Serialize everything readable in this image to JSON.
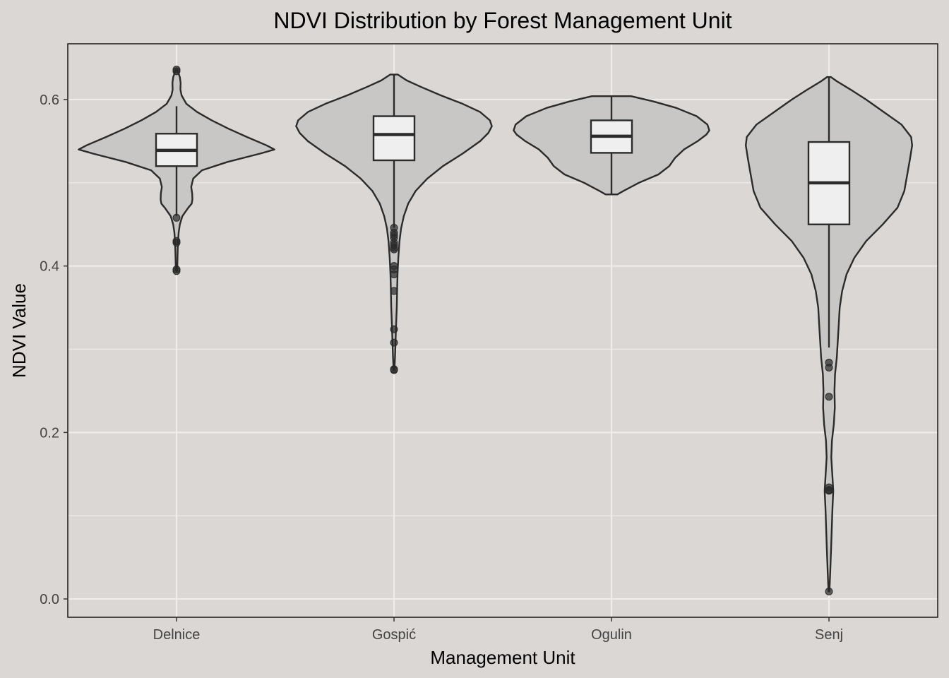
{
  "chart_data": {
    "type": "violin",
    "title": "NDVI Distribution by Forest Management Unit",
    "xlabel": "Management Unit",
    "ylabel": "NDVI Value",
    "ylim": [
      -0.022,
      0.667
    ],
    "yticks": [
      0.0,
      0.2,
      0.4,
      0.6
    ],
    "ytick_labels": [
      "0.0",
      "0.2",
      "0.4",
      "0.6"
    ],
    "categories": [
      "Delnice",
      "Gospić",
      "Ogulin",
      "Senj"
    ],
    "grid": true,
    "colors": {
      "panel": "#dad7d4",
      "violin_fill": "#c9c7c5",
      "box_fill": "#efefef",
      "stroke": "#2b2b2b",
      "grid": "#efedeb"
    },
    "groups": [
      {
        "name": "Delnice",
        "box": {
          "q1": 0.52,
          "median": 0.539,
          "q3": 0.559,
          "whisker_low": 0.46,
          "whisker_high": 0.592
        },
        "outliers": [
          0.636,
          0.634,
          0.458,
          0.43,
          0.428,
          0.396,
          0.394
        ],
        "density": [
          [
            0.394,
            0.004
          ],
          [
            0.4,
            0.008
          ],
          [
            0.41,
            0.01
          ],
          [
            0.42,
            0.012
          ],
          [
            0.43,
            0.016
          ],
          [
            0.44,
            0.022
          ],
          [
            0.45,
            0.034
          ],
          [
            0.46,
            0.06
          ],
          [
            0.47,
            0.12
          ],
          [
            0.475,
            0.155
          ],
          [
            0.48,
            0.162
          ],
          [
            0.487,
            0.16
          ],
          [
            0.495,
            0.15
          ],
          [
            0.505,
            0.17
          ],
          [
            0.515,
            0.26
          ],
          [
            0.525,
            0.52
          ],
          [
            0.535,
            0.85
          ],
          [
            0.54,
            1.0
          ],
          [
            0.545,
            0.92
          ],
          [
            0.555,
            0.72
          ],
          [
            0.565,
            0.53
          ],
          [
            0.575,
            0.36
          ],
          [
            0.585,
            0.21
          ],
          [
            0.595,
            0.1
          ],
          [
            0.605,
            0.052
          ],
          [
            0.612,
            0.04
          ],
          [
            0.62,
            0.042
          ],
          [
            0.627,
            0.034
          ],
          [
            0.633,
            0.016
          ],
          [
            0.636,
            0.004
          ]
        ]
      },
      {
        "name": "Gospić",
        "box": {
          "q1": 0.527,
          "median": 0.558,
          "q3": 0.58,
          "whisker_low": 0.446,
          "whisker_high": 0.63
        },
        "outliers": [
          0.446,
          0.44,
          0.437,
          0.434,
          0.428,
          0.425,
          0.422,
          0.42,
          0.4,
          0.396,
          0.39,
          0.37,
          0.324,
          0.308,
          0.276,
          0.275
        ],
        "density": [
          [
            0.275,
            0.004
          ],
          [
            0.29,
            0.01
          ],
          [
            0.31,
            0.016
          ],
          [
            0.33,
            0.022
          ],
          [
            0.35,
            0.028
          ],
          [
            0.37,
            0.032
          ],
          [
            0.39,
            0.036
          ],
          [
            0.41,
            0.044
          ],
          [
            0.43,
            0.056
          ],
          [
            0.445,
            0.072
          ],
          [
            0.46,
            0.1
          ],
          [
            0.475,
            0.145
          ],
          [
            0.49,
            0.22
          ],
          [
            0.505,
            0.34
          ],
          [
            0.52,
            0.5
          ],
          [
            0.535,
            0.7
          ],
          [
            0.55,
            0.88
          ],
          [
            0.56,
            0.965
          ],
          [
            0.568,
            1.0
          ],
          [
            0.575,
            0.98
          ],
          [
            0.585,
            0.88
          ],
          [
            0.595,
            0.7
          ],
          [
            0.605,
            0.48
          ],
          [
            0.615,
            0.28
          ],
          [
            0.623,
            0.13
          ],
          [
            0.63,
            0.04
          ]
        ]
      },
      {
        "name": "Ogulin",
        "box": {
          "q1": 0.536,
          "median": 0.556,
          "q3": 0.575,
          "whisker_low": 0.486,
          "whisker_high": 0.604
        },
        "outliers": [],
        "density": [
          [
            0.486,
            0.06
          ],
          [
            0.49,
            0.12
          ],
          [
            0.5,
            0.28
          ],
          [
            0.51,
            0.48
          ],
          [
            0.52,
            0.59
          ],
          [
            0.53,
            0.65
          ],
          [
            0.54,
            0.74
          ],
          [
            0.55,
            0.88
          ],
          [
            0.558,
            0.97
          ],
          [
            0.563,
            1.0
          ],
          [
            0.57,
            0.98
          ],
          [
            0.58,
            0.87
          ],
          [
            0.59,
            0.66
          ],
          [
            0.598,
            0.42
          ],
          [
            0.604,
            0.2
          ]
        ]
      },
      {
        "name": "Senj",
        "box": {
          "q1": 0.45,
          "median": 0.5,
          "q3": 0.549,
          "whisker_low": 0.302,
          "whisker_high": 0.627
        },
        "outliers": [
          0.284,
          0.278,
          0.243,
          0.134,
          0.131,
          0.13,
          0.009
        ],
        "density": [
          [
            0.009,
            0.004
          ],
          [
            0.03,
            0.012
          ],
          [
            0.06,
            0.022
          ],
          [
            0.09,
            0.03
          ],
          [
            0.11,
            0.036
          ],
          [
            0.13,
            0.044
          ],
          [
            0.15,
            0.034
          ],
          [
            0.17,
            0.024
          ],
          [
            0.19,
            0.03
          ],
          [
            0.21,
            0.05
          ],
          [
            0.23,
            0.06
          ],
          [
            0.25,
            0.056
          ],
          [
            0.27,
            0.062
          ],
          [
            0.29,
            0.08
          ],
          [
            0.31,
            0.09
          ],
          [
            0.33,
            0.1
          ],
          [
            0.35,
            0.11
          ],
          [
            0.37,
            0.135
          ],
          [
            0.39,
            0.18
          ],
          [
            0.41,
            0.26
          ],
          [
            0.43,
            0.38
          ],
          [
            0.45,
            0.55
          ],
          [
            0.47,
            0.7
          ],
          [
            0.49,
            0.77
          ],
          [
            0.51,
            0.8
          ],
          [
            0.53,
            0.83
          ],
          [
            0.545,
            0.85
          ],
          [
            0.555,
            0.84
          ],
          [
            0.57,
            0.74
          ],
          [
            0.585,
            0.56
          ],
          [
            0.6,
            0.38
          ],
          [
            0.612,
            0.22
          ],
          [
            0.622,
            0.08
          ],
          [
            0.627,
            0.02
          ]
        ]
      }
    ]
  }
}
